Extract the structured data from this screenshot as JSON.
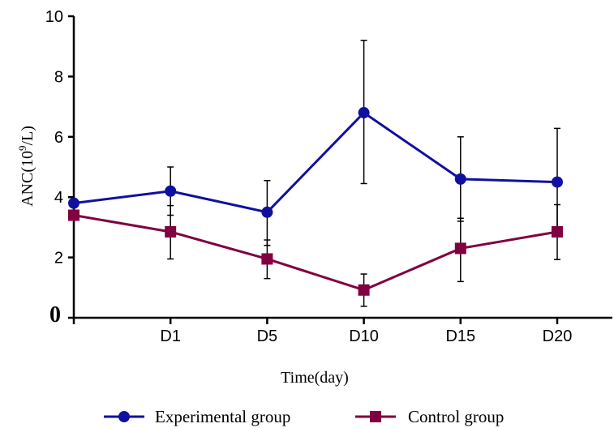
{
  "chart_data": {
    "type": "line",
    "title": "",
    "xlabel": "Time(day)",
    "ylabel": "ANC(10",
    "ylabel_sup": "9",
    "ylabel_tail": "/L)",
    "categories": [
      "",
      "D1",
      "D5",
      "D10",
      "D15",
      "D20"
    ],
    "ylim": [
      0,
      10
    ],
    "yticks": [
      0,
      2,
      4,
      6,
      8,
      10
    ],
    "ytick_labels": [
      "0",
      "2",
      "4",
      "6",
      "8",
      "10"
    ],
    "grid": false,
    "legend_position": "bottom",
    "series": [
      {
        "name": "Experimental group",
        "marker": "circle",
        "color": "#1010a0",
        "values": [
          3.8,
          4.2,
          3.5,
          6.8,
          4.6,
          4.5
        ],
        "error_low": [
          3.8,
          3.4,
          2.4,
          4.45,
          3.2,
          2.7
        ],
        "error_high": [
          3.8,
          5.0,
          4.55,
          9.2,
          6.0,
          6.28
        ]
      },
      {
        "name": "Control group",
        "marker": "square",
        "color": "#800040",
        "values": [
          3.4,
          2.85,
          1.95,
          0.92,
          2.3,
          2.85
        ],
        "error_low": [
          3.4,
          1.95,
          1.3,
          0.38,
          1.2,
          1.93
        ],
        "error_high": [
          3.4,
          3.72,
          2.58,
          1.45,
          3.3,
          3.75
        ]
      }
    ]
  }
}
